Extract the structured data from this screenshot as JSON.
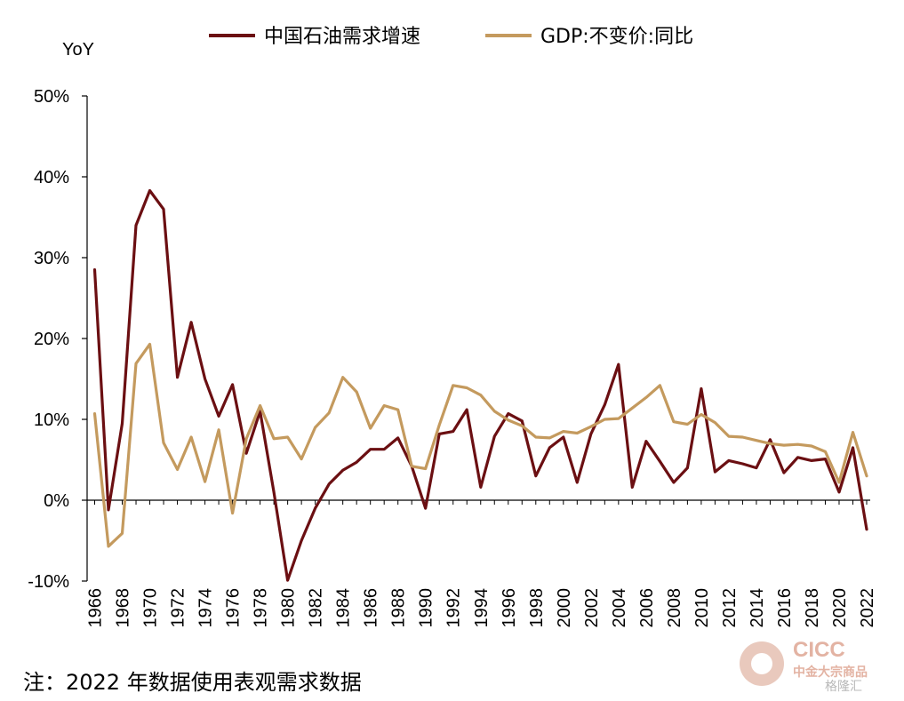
{
  "y_axis_unit": "YoY",
  "legend": [
    {
      "label": "中国石油需求增速",
      "color": "#6b0f12"
    },
    {
      "label": "GDP:不变价:同比",
      "color": "#c49a5e"
    }
  ],
  "note": "注：2022 年数据使用表观需求数据",
  "watermark": {
    "brand": "CICC",
    "subtitle": "中金大宗商品",
    "source": "格隆汇"
  },
  "chart_data": {
    "type": "line",
    "x": [
      1966,
      1967,
      1968,
      1969,
      1970,
      1971,
      1972,
      1973,
      1974,
      1975,
      1976,
      1977,
      1978,
      1979,
      1980,
      1981,
      1982,
      1983,
      1984,
      1985,
      1986,
      1987,
      1988,
      1989,
      1990,
      1991,
      1992,
      1993,
      1994,
      1995,
      1996,
      1997,
      1998,
      1999,
      2000,
      2001,
      2002,
      2003,
      2004,
      2005,
      2006,
      2007,
      2008,
      2009,
      2010,
      2011,
      2012,
      2013,
      2014,
      2015,
      2016,
      2017,
      2018,
      2019,
      2020,
      2021,
      2022
    ],
    "x_tick_labels": [
      "1966",
      "1968",
      "1970",
      "1972",
      "1974",
      "1976",
      "1978",
      "1980",
      "1982",
      "1984",
      "1986",
      "1988",
      "1990",
      "1992",
      "1994",
      "1996",
      "1998",
      "2000",
      "2002",
      "2004",
      "2006",
      "2008",
      "2010",
      "2012",
      "2014",
      "2016",
      "2018",
      "2020",
      "2022"
    ],
    "y_tick_labels": [
      "-10%",
      "0%",
      "10%",
      "20%",
      "30%",
      "40%",
      "50%"
    ],
    "y_ticks": [
      -10,
      0,
      10,
      20,
      30,
      40,
      50
    ],
    "ylim": [
      -10,
      50
    ],
    "series": [
      {
        "name": "中国石油需求增速",
        "color": "#6b0f12",
        "values": [
          28.5,
          -1.2,
          9.5,
          34.0,
          38.3,
          36.0,
          15.2,
          22.0,
          15.0,
          10.4,
          14.3,
          5.8,
          11.0,
          1.0,
          -9.9,
          -5.0,
          -1.0,
          2.0,
          3.7,
          4.7,
          6.3,
          6.3,
          7.7,
          4.2,
          -1.0,
          8.2,
          8.5,
          11.2,
          1.6,
          7.9,
          10.7,
          9.8,
          3.0,
          6.5,
          7.8,
          2.2,
          8.2,
          11.8,
          16.8,
          1.6,
          7.3,
          4.8,
          2.2,
          4.0,
          13.8,
          3.5,
          4.9,
          4.5,
          4.0,
          7.5,
          3.4,
          5.3,
          4.9,
          5.1,
          1.0,
          6.5,
          -3.6
        ]
      },
      {
        "name": "GDP:不变价:同比",
        "color": "#c49a5e",
        "values": [
          10.7,
          -5.7,
          -4.1,
          16.9,
          19.3,
          7.1,
          3.8,
          7.8,
          2.3,
          8.7,
          -1.6,
          7.6,
          11.7,
          7.6,
          7.8,
          5.1,
          9.0,
          10.8,
          15.2,
          13.4,
          8.9,
          11.7,
          11.2,
          4.2,
          3.9,
          9.3,
          14.2,
          13.9,
          13.0,
          11.0,
          9.9,
          9.2,
          7.8,
          7.7,
          8.5,
          8.3,
          9.1,
          10.0,
          10.1,
          11.4,
          12.7,
          14.2,
          9.7,
          9.4,
          10.6,
          9.6,
          7.9,
          7.8,
          7.4,
          7.0,
          6.8,
          6.9,
          6.7,
          6.0,
          2.2,
          8.4,
          3.0
        ]
      }
    ],
    "grid": false,
    "legend_position": "top-center"
  }
}
